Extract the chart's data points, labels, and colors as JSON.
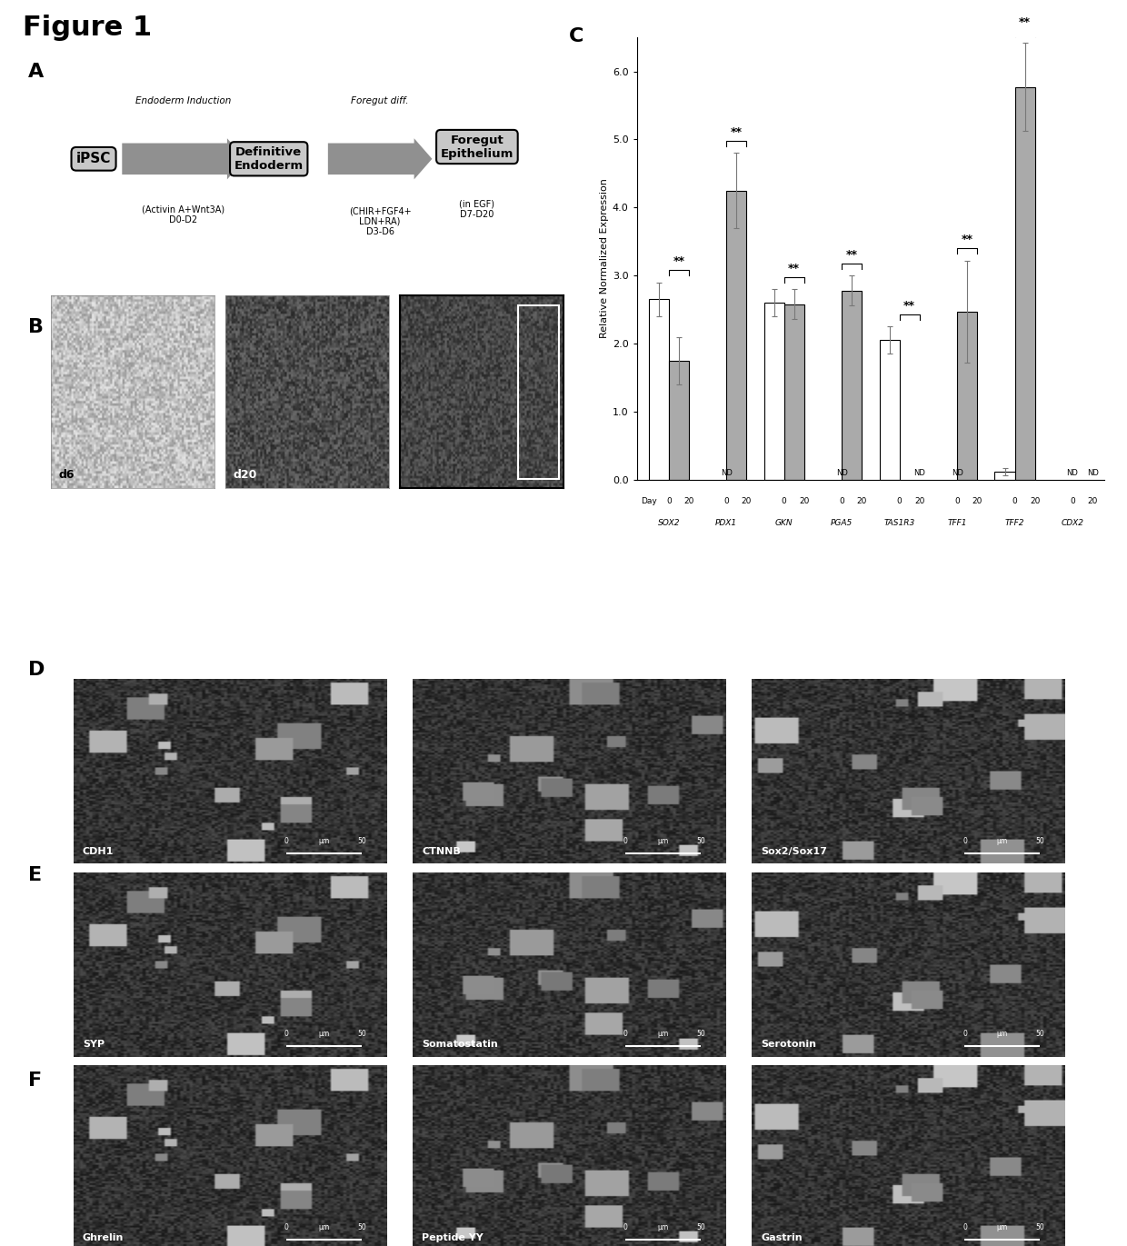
{
  "title": "Figure 1",
  "panel_A_label": "A",
  "panel_B_label": "B",
  "panel_C_label": "C",
  "panel_D_label": "D",
  "panel_E_label": "E",
  "panel_F_label": "F",
  "arrow_diagram": {
    "box1_label": "iPSC",
    "arrow1_top": "Endoderm Induction",
    "box2_label": "Definitive\nEndoderm",
    "arrow1_bottom": "(Activin A+Wnt3A)\nD0-D2",
    "arrow2_top": "Foregut diff.",
    "box3_label": "Foregut\nEpithelium",
    "arrow2_bottom": "(CHIR+FGF4+\nLDN+RA)\nD3-D6",
    "box3_sub": "(in EGF)\nD7-D20"
  },
  "bar_chart": {
    "genes": [
      "SOX2",
      "PDX1",
      "GKN",
      "PGA5",
      "TAS1R3",
      "TFF1",
      "TFF2",
      "CDX2"
    ],
    "day0_values": [
      2.65,
      0.0,
      2.6,
      0.0,
      2.05,
      0.0,
      0.12,
      0.0
    ],
    "day20_values": [
      1.75,
      4.25,
      2.58,
      2.78,
      0.0,
      2.47,
      5.77,
      0.0
    ],
    "day0_errors": [
      0.25,
      0.0,
      0.2,
      0.0,
      0.2,
      0.0,
      0.05,
      0.0
    ],
    "day20_errors": [
      0.35,
      0.55,
      0.22,
      0.22,
      0.0,
      0.75,
      0.65,
      0.0
    ],
    "day0_nd": [
      false,
      true,
      false,
      true,
      false,
      true,
      false,
      true
    ],
    "day20_nd": [
      false,
      false,
      false,
      false,
      true,
      false,
      false,
      true
    ],
    "significance": [
      true,
      true,
      true,
      true,
      true,
      true,
      true,
      false
    ],
    "ylabel": "Relative Normalized Expression",
    "ylim": [
      0,
      6.5
    ],
    "ytick_vals": [
      0.0,
      1.0,
      2.0,
      3.0,
      4.0,
      5.0,
      6.0
    ],
    "ytick_labels": [
      "0.0",
      "1.0",
      "2.0",
      "3.0",
      "4.0",
      "5.0",
      "6.0"
    ],
    "bar_color_day0": "#ffffff",
    "bar_color_day20": "#aaaaaa",
    "bar_edge_color": "#000000"
  },
  "microscopy_D": {
    "labels": [
      "CDH1",
      "CTNNB",
      "Sox2/Sox17"
    ]
  },
  "microscopy_E": {
    "labels": [
      "SYP",
      "Somatostatin",
      "Serotonin"
    ]
  },
  "microscopy_F": {
    "labels": [
      "Ghrelin",
      "Peptide YY",
      "Gastrin"
    ]
  },
  "bg_color": "#ffffff",
  "text_color": "#000000"
}
